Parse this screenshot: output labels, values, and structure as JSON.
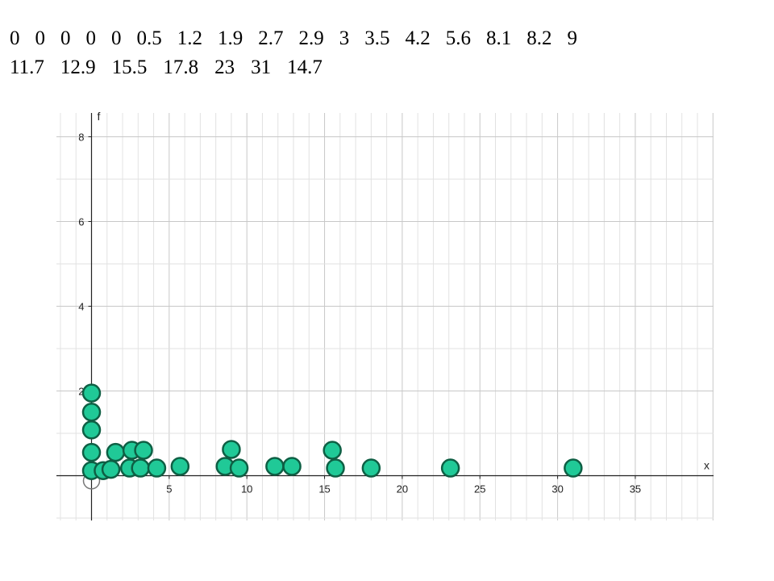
{
  "value_list": {
    "row1": [
      "0",
      "0",
      "0",
      "0",
      "0",
      "0.5",
      "1.2",
      "1.9",
      "2.7",
      "2.9",
      "3",
      "3.5",
      "4.2",
      "5.6",
      "8.1",
      "8.2",
      "9"
    ],
    "row2": [
      "11.7",
      "12.9",
      "15.5",
      "17.8",
      "23",
      "31",
      "14.7"
    ]
  },
  "chart_data": {
    "type": "scatter",
    "title": "",
    "xlabel": "x",
    "ylabel": "f",
    "xlim": [
      -2.2,
      40
    ],
    "ylim": [
      -1.1,
      8.6
    ],
    "x_ticks": [
      "5",
      "10",
      "15",
      "20",
      "25",
      "30",
      "35"
    ],
    "y_ticks": [
      "2",
      "4",
      "6",
      "8"
    ],
    "grid": true,
    "dot_color": "#20c997",
    "dot_stroke": "#0e5f44",
    "points": [
      {
        "x": 0,
        "y": 0.12
      },
      {
        "x": 0,
        "y": 0.55
      },
      {
        "x": 0,
        "y": 1.08
      },
      {
        "x": 0,
        "y": 1.5
      },
      {
        "x": 0,
        "y": 1.95
      },
      {
        "x": 0.75,
        "y": 0.12
      },
      {
        "x": 1.25,
        "y": 0.15
      },
      {
        "x": 1.55,
        "y": 0.55
      },
      {
        "x": 2.45,
        "y": 0.18
      },
      {
        "x": 2.6,
        "y": 0.6
      },
      {
        "x": 3.15,
        "y": 0.18
      },
      {
        "x": 3.35,
        "y": 0.6
      },
      {
        "x": 4.2,
        "y": 0.18
      },
      {
        "x": 5.7,
        "y": 0.22
      },
      {
        "x": 8.6,
        "y": 0.22
      },
      {
        "x": 9.0,
        "y": 0.62
      },
      {
        "x": 9.5,
        "y": 0.18
      },
      {
        "x": 11.8,
        "y": 0.22
      },
      {
        "x": 12.9,
        "y": 0.22
      },
      {
        "x": 15.5,
        "y": 0.6
      },
      {
        "x": 15.7,
        "y": 0.18
      },
      {
        "x": 18.0,
        "y": 0.18
      },
      {
        "x": 23.1,
        "y": 0.18
      },
      {
        "x": 31.0,
        "y": 0.18
      }
    ],
    "hollow_points": [
      {
        "x": 0,
        "y": -0.12
      }
    ]
  }
}
